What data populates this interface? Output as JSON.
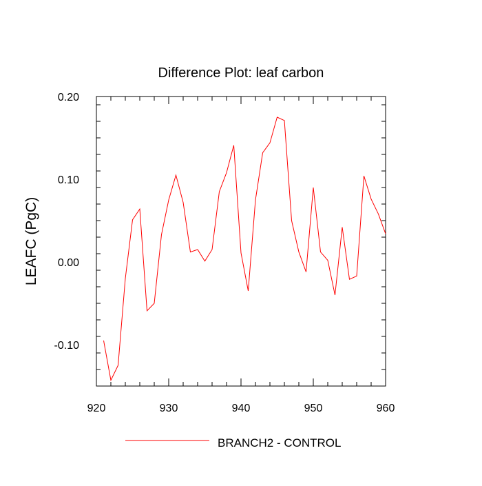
{
  "chart_data": {
    "type": "line",
    "title": "Difference Plot: leaf carbon",
    "xlabel": "",
    "ylabel": "LEAFC  (PgC)",
    "xlim": [
      920,
      960
    ],
    "ylim": [
      -0.15,
      0.2
    ],
    "x_ticks": [
      920,
      930,
      940,
      950,
      960
    ],
    "x_tick_labels": [
      "920",
      "930",
      "940",
      "950",
      "960"
    ],
    "y_ticks": [
      -0.1,
      0.0,
      0.1,
      0.2
    ],
    "y_tick_labels": [
      "-0.10",
      "0.00",
      "0.10",
      "0.20"
    ],
    "grid": false,
    "legend_position": "bottom-center",
    "series": [
      {
        "name": "BRANCH2 - CONTROL",
        "color": "#ff0000",
        "x": [
          921,
          922,
          923,
          924,
          925,
          926,
          927,
          928,
          929,
          930,
          931,
          932,
          933,
          934,
          935,
          936,
          937,
          938,
          939,
          940,
          941,
          942,
          943,
          944,
          945,
          946,
          947,
          948,
          949,
          950,
          951,
          952,
          953,
          954,
          955,
          956,
          957,
          958,
          959,
          960
        ],
        "y": [
          -0.095,
          -0.143,
          -0.125,
          -0.02,
          0.051,
          0.064,
          -0.059,
          -0.05,
          0.033,
          0.075,
          0.105,
          0.072,
          0.012,
          0.015,
          0.001,
          0.015,
          0.085,
          0.108,
          0.141,
          0.011,
          -0.035,
          0.075,
          0.132,
          0.144,
          0.175,
          0.171,
          0.05,
          0.012,
          -0.012,
          0.09,
          0.012,
          0.002,
          -0.04,
          0.042,
          -0.021,
          -0.017,
          0.104,
          0.076,
          0.058,
          0.034
        ]
      }
    ]
  }
}
